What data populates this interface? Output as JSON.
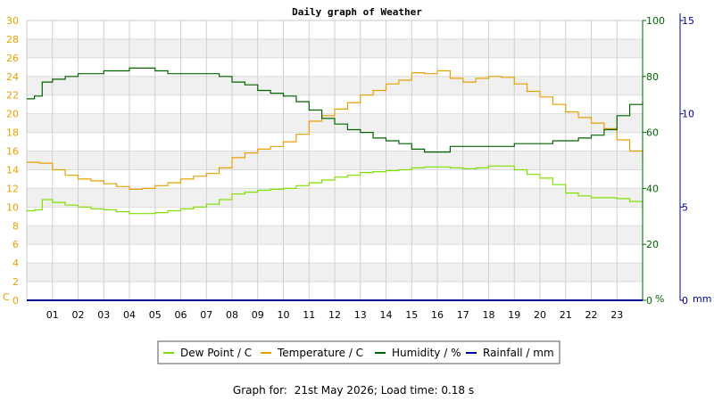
{
  "chart_data": {
    "type": "line",
    "title": "Daily graph of Weather",
    "x_ticks": [
      "01",
      "02",
      "03",
      "04",
      "05",
      "06",
      "07",
      "08",
      "09",
      "10",
      "11",
      "12",
      "13",
      "14",
      "15",
      "16",
      "17",
      "18",
      "19",
      "20",
      "21",
      "22",
      "23"
    ],
    "xlim": [
      0,
      24
    ],
    "axes": {
      "left": {
        "unit_label": "C",
        "range": [
          0,
          30
        ],
        "ticks": [
          0,
          2,
          4,
          6,
          8,
          10,
          12,
          14,
          16,
          18,
          20,
          22,
          24,
          26,
          28,
          30
        ],
        "color": "#e8a000"
      },
      "right1": {
        "unit_label": "%",
        "range": [
          0,
          100
        ],
        "ticks": [
          0,
          20,
          40,
          60,
          80,
          100
        ],
        "color": "#006400"
      },
      "right2": {
        "unit_label": "mm",
        "range": [
          0,
          15
        ],
        "ticks": [
          0,
          5,
          10,
          15
        ],
        "color": "#000099"
      }
    },
    "series": [
      {
        "name": "Dew Point / C",
        "axis": "left",
        "color": "#7ee000",
        "x": [
          0,
          0.3,
          0.6,
          1,
          1.5,
          2,
          2.5,
          3,
          3.5,
          4,
          4.5,
          5,
          5.5,
          6,
          6.5,
          7,
          7.5,
          8,
          8.5,
          9,
          9.5,
          10,
          10.5,
          11,
          11.5,
          12,
          12.5,
          13,
          13.5,
          14,
          14.5,
          15,
          15.5,
          16,
          16.5,
          17,
          17.5,
          18,
          18.5,
          19,
          19.5,
          20,
          20.5,
          21,
          21.5,
          22,
          22.5,
          23,
          23.5,
          24
        ],
        "y": [
          9.6,
          9.7,
          10.8,
          10.5,
          10.2,
          10.0,
          9.8,
          9.7,
          9.5,
          9.3,
          9.3,
          9.4,
          9.6,
          9.8,
          10.0,
          10.3,
          10.8,
          11.4,
          11.6,
          11.8,
          11.9,
          12.0,
          12.3,
          12.6,
          12.9,
          13.2,
          13.4,
          13.7,
          13.8,
          13.9,
          14.0,
          14.2,
          14.3,
          14.3,
          14.2,
          14.1,
          14.2,
          14.4,
          14.4,
          14.0,
          13.5,
          13.1,
          12.4,
          11.5,
          11.2,
          11.0,
          11.0,
          10.9,
          10.6,
          9.8
        ]
      },
      {
        "name": "Temperature / C",
        "axis": "left",
        "color": "#e8a000",
        "x": [
          0,
          0.5,
          1,
          1.5,
          2,
          2.5,
          3,
          3.5,
          4,
          4.5,
          5,
          5.5,
          6,
          6.5,
          7,
          7.5,
          8,
          8.5,
          9,
          9.5,
          10,
          10.5,
          11,
          11.5,
          12,
          12.5,
          13,
          13.5,
          14,
          14.5,
          15,
          15.5,
          16,
          16.5,
          17,
          17.5,
          18,
          18.5,
          19,
          19.5,
          20,
          20.5,
          21,
          21.5,
          22,
          22.5,
          23,
          23.5,
          24
        ],
        "y": [
          14.8,
          14.7,
          14.0,
          13.4,
          13.0,
          12.8,
          12.5,
          12.2,
          11.9,
          12.0,
          12.3,
          12.6,
          13.0,
          13.3,
          13.6,
          14.2,
          15.3,
          15.8,
          16.2,
          16.5,
          17.0,
          17.8,
          19.2,
          19.8,
          20.5,
          21.2,
          22.0,
          22.5,
          23.2,
          23.6,
          24.4,
          24.3,
          24.6,
          23.8,
          23.4,
          23.8,
          24.0,
          23.9,
          23.2,
          22.4,
          21.8,
          21.0,
          20.2,
          19.6,
          19.0,
          18.4,
          17.2,
          16.0,
          15.2
        ]
      },
      {
        "name": "Humidity / %",
        "axis": "right1",
        "color": "#006400",
        "x": [
          0,
          0.3,
          0.6,
          1,
          1.5,
          2,
          2.5,
          3,
          3.5,
          4,
          4.5,
          5,
          5.5,
          6,
          6.5,
          7,
          7.5,
          8,
          8.5,
          9,
          9.5,
          10,
          10.5,
          11,
          11.5,
          12,
          12.5,
          13,
          13.5,
          14,
          14.5,
          15,
          15.5,
          16,
          16.5,
          17,
          17.5,
          18,
          18.5,
          19,
          19.5,
          20,
          20.5,
          21,
          21.5,
          22,
          22.5,
          23,
          23.5,
          24
        ],
        "y": [
          72,
          73,
          78,
          79,
          80,
          81,
          81,
          82,
          82,
          83,
          83,
          82,
          81,
          81,
          81,
          81,
          80,
          78,
          77,
          75,
          74,
          73,
          71,
          68,
          65,
          63,
          61,
          60,
          58,
          57,
          56,
          54,
          53,
          53,
          55,
          55,
          55,
          55,
          55,
          56,
          56,
          56,
          57,
          57,
          58,
          59,
          61,
          66,
          70,
          71
        ]
      },
      {
        "name": "Rainfall / mm",
        "axis": "right2",
        "color": "#000099",
        "x": [
          0,
          24
        ],
        "y": [
          0,
          0
        ]
      }
    ],
    "legend_placement": "bottom-center",
    "grid": true
  },
  "footer": {
    "label": "Graph for:",
    "value": "21st May 2026; Load time: 0.18 s"
  }
}
